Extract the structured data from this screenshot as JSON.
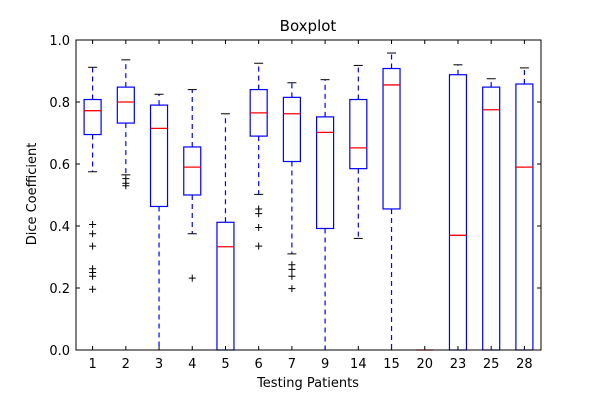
{
  "chart_data": {
    "type": "boxplot",
    "title": "Boxplot",
    "xlabel": "Testing Patients",
    "ylabel": "Dice Coefficient",
    "ylim": [
      0.0,
      1.0
    ],
    "yticks": [
      "0.0",
      "0.2",
      "0.4",
      "0.6",
      "0.8",
      "1.0"
    ],
    "categories": [
      "1",
      "2",
      "3",
      "4",
      "5",
      "6",
      "7",
      "9",
      "14",
      "15",
      "20",
      "23",
      "25",
      "28"
    ],
    "grid": false,
    "colors": {
      "box": "#0000ff",
      "median": "#ff0000",
      "whisker": "#0000ff",
      "cap": "#000000",
      "flier": "#000000"
    },
    "boxes": [
      {
        "label": "1",
        "whislo": 0.575,
        "q1": 0.695,
        "med": 0.772,
        "q3": 0.808,
        "whishi": 0.912,
        "fliers": [
          0.405,
          0.375,
          0.335,
          0.262,
          0.25,
          0.238,
          0.196
        ]
      },
      {
        "label": "2",
        "whislo": 0.565,
        "q1": 0.732,
        "med": 0.8,
        "q3": 0.848,
        "whishi": 0.936,
        "fliers": [
          0.553,
          0.538,
          0.53
        ]
      },
      {
        "label": "3",
        "whislo": 0.0,
        "q1": 0.463,
        "med": 0.715,
        "q3": 0.79,
        "whishi": 0.825,
        "fliers": []
      },
      {
        "label": "4",
        "whislo": 0.375,
        "q1": 0.5,
        "med": 0.59,
        "q3": 0.655,
        "whishi": 0.84,
        "fliers": [
          0.232
        ]
      },
      {
        "label": "5",
        "whislo": 0.0,
        "q1": 0.0,
        "med": 0.333,
        "q3": 0.412,
        "whishi": 0.762,
        "fliers": []
      },
      {
        "label": "6",
        "whislo": 0.502,
        "q1": 0.69,
        "med": 0.765,
        "q3": 0.84,
        "whishi": 0.925,
        "fliers": [
          0.455,
          0.44,
          0.395,
          0.335
        ]
      },
      {
        "label": "7",
        "whislo": 0.31,
        "q1": 0.608,
        "med": 0.762,
        "q3": 0.815,
        "whishi": 0.862,
        "fliers": [
          0.275,
          0.26,
          0.238,
          0.198
        ]
      },
      {
        "label": "9",
        "whislo": 0.0,
        "q1": 0.392,
        "med": 0.702,
        "q3": 0.752,
        "whishi": 0.872,
        "fliers": []
      },
      {
        "label": "14",
        "whislo": 0.36,
        "q1": 0.585,
        "med": 0.652,
        "q3": 0.808,
        "whishi": 0.918,
        "fliers": []
      },
      {
        "label": "15",
        "whislo": 0.0,
        "q1": 0.455,
        "med": 0.855,
        "q3": 0.908,
        "whishi": 0.958,
        "fliers": []
      },
      {
        "label": "20",
        "whislo": 0.0,
        "q1": 0.0,
        "med": 0.0,
        "q3": 0.0,
        "whishi": 0.0,
        "fliers": []
      },
      {
        "label": "23",
        "whislo": 0.0,
        "q1": 0.0,
        "med": 0.37,
        "q3": 0.888,
        "whishi": 0.92,
        "fliers": []
      },
      {
        "label": "25",
        "whislo": 0.0,
        "q1": 0.0,
        "med": 0.775,
        "q3": 0.848,
        "whishi": 0.875,
        "fliers": []
      },
      {
        "label": "28",
        "whislo": 0.0,
        "q1": 0.0,
        "med": 0.59,
        "q3": 0.858,
        "whishi": 0.91,
        "fliers": []
      }
    ]
  }
}
